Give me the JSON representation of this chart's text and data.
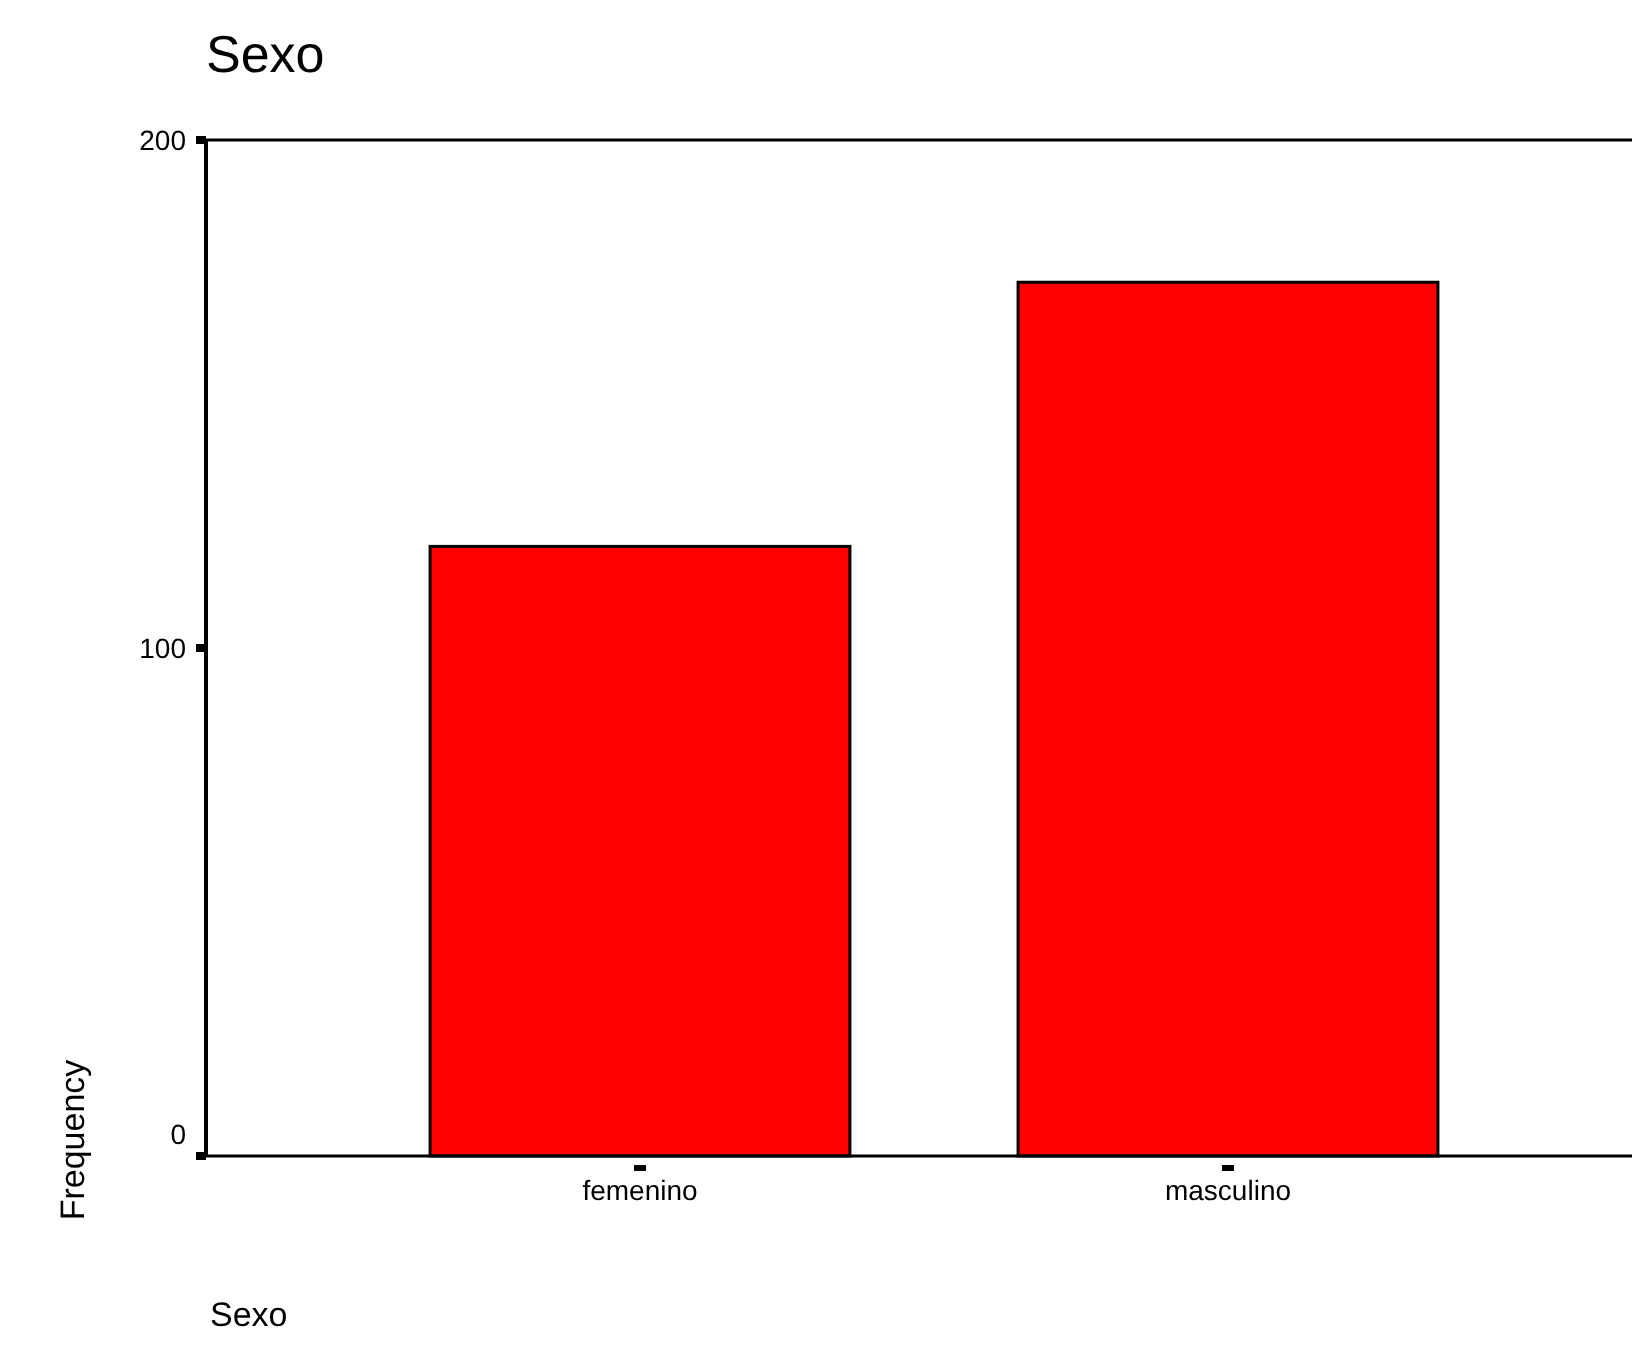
{
  "chart_data": {
    "type": "bar",
    "title": "Sexo",
    "xlabel": "Sexo",
    "ylabel": "Frequency",
    "categories": [
      "femenino",
      "masculino"
    ],
    "values": [
      120,
      172
    ],
    "color": "#ff0000",
    "ylim": [
      0,
      200
    ],
    "yticks": [
      0,
      100,
      200
    ],
    "grid": false
  }
}
